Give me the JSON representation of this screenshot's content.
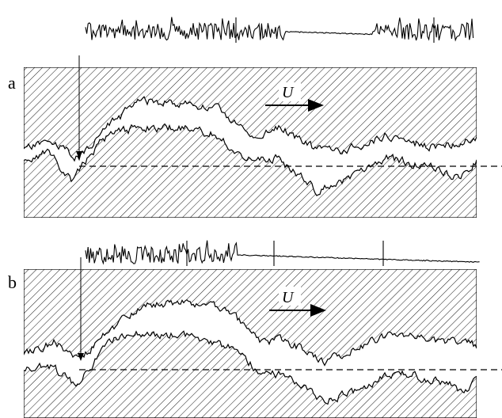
{
  "panels": [
    {
      "label": "a",
      "velocity_label": "U"
    },
    {
      "label": "b",
      "velocity_label": "U"
    }
  ],
  "colors": {
    "ink": "#000000",
    "paper": "#ffffff"
  }
}
